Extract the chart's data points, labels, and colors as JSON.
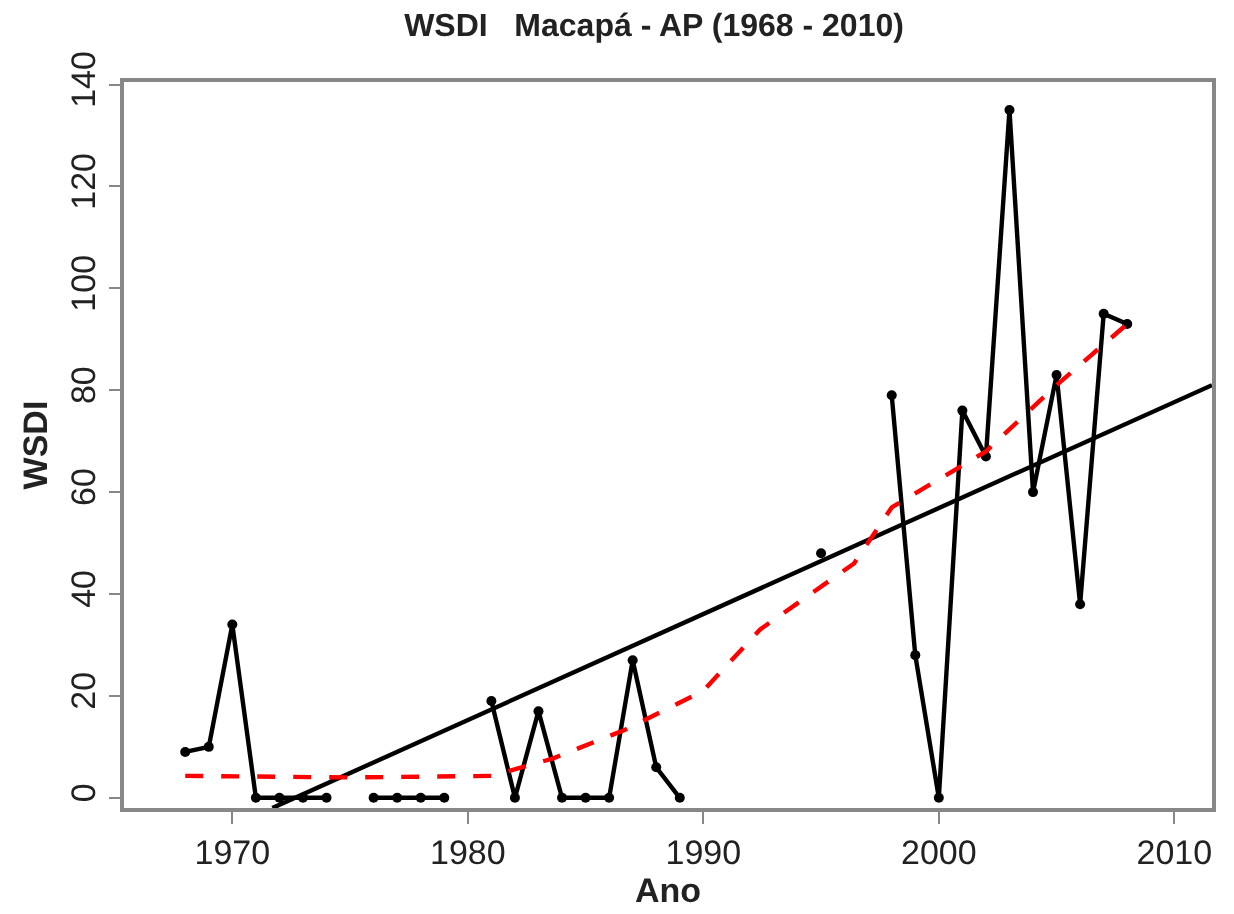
{
  "chart_data": {
    "type": "line",
    "title": "WSDI   Macapá - AP (1968 - 2010)",
    "xlabel": "Ano",
    "ylabel": "WSDI",
    "xlim": [
      1965.4,
      2011.6
    ],
    "ylim": [
      -2,
      140.5
    ],
    "xticks": [
      1970,
      1980,
      1990,
      2000,
      2010
    ],
    "yticks": [
      0,
      20,
      40,
      60,
      80,
      100,
      120,
      140
    ],
    "series": [
      {
        "color": "#000000",
        "marker": "circle",
        "line_style": "solid",
        "x": [
          1968,
          1969,
          1970,
          1971,
          1972,
          1973,
          1974,
          1975,
          1976,
          1977,
          1978,
          1979,
          1980,
          1981,
          1982,
          1983,
          1984,
          1985,
          1986,
          1987,
          1988,
          1989,
          1990,
          1991,
          1992,
          1993,
          1994,
          1995,
          1996,
          1997,
          1998,
          1999,
          2000,
          2001,
          2002,
          2003,
          2004,
          2005,
          2006,
          2007,
          2008
        ],
        "values": [
          9,
          10,
          34,
          0,
          0,
          0,
          0,
          null,
          0,
          0,
          0,
          0,
          null,
          19,
          0,
          17,
          0,
          0,
          0,
          27,
          6,
          0,
          null,
          null,
          null,
          null,
          null,
          48,
          null,
          null,
          79,
          28,
          0,
          76,
          67,
          135,
          60,
          83,
          38,
          95,
          93
        ]
      },
      {
        "color": "#000000",
        "marker": "none",
        "line_style": "solid",
        "x": [
          1971.7,
          2011.6
        ],
        "values": [
          -2,
          81
        ]
      },
      {
        "color": "#ff0000",
        "marker": "none",
        "line_style": "dashed",
        "x": [
          1968,
          1975,
          1981,
          1983.6,
          1986.7,
          1990,
          1992.4,
          1996.4,
          1998,
          2002,
          2005,
          2008
        ],
        "values": [
          4.3,
          4,
          4.3,
          7.7,
          13.4,
          21,
          33,
          46,
          57,
          68,
          81,
          93
        ]
      }
    ]
  }
}
